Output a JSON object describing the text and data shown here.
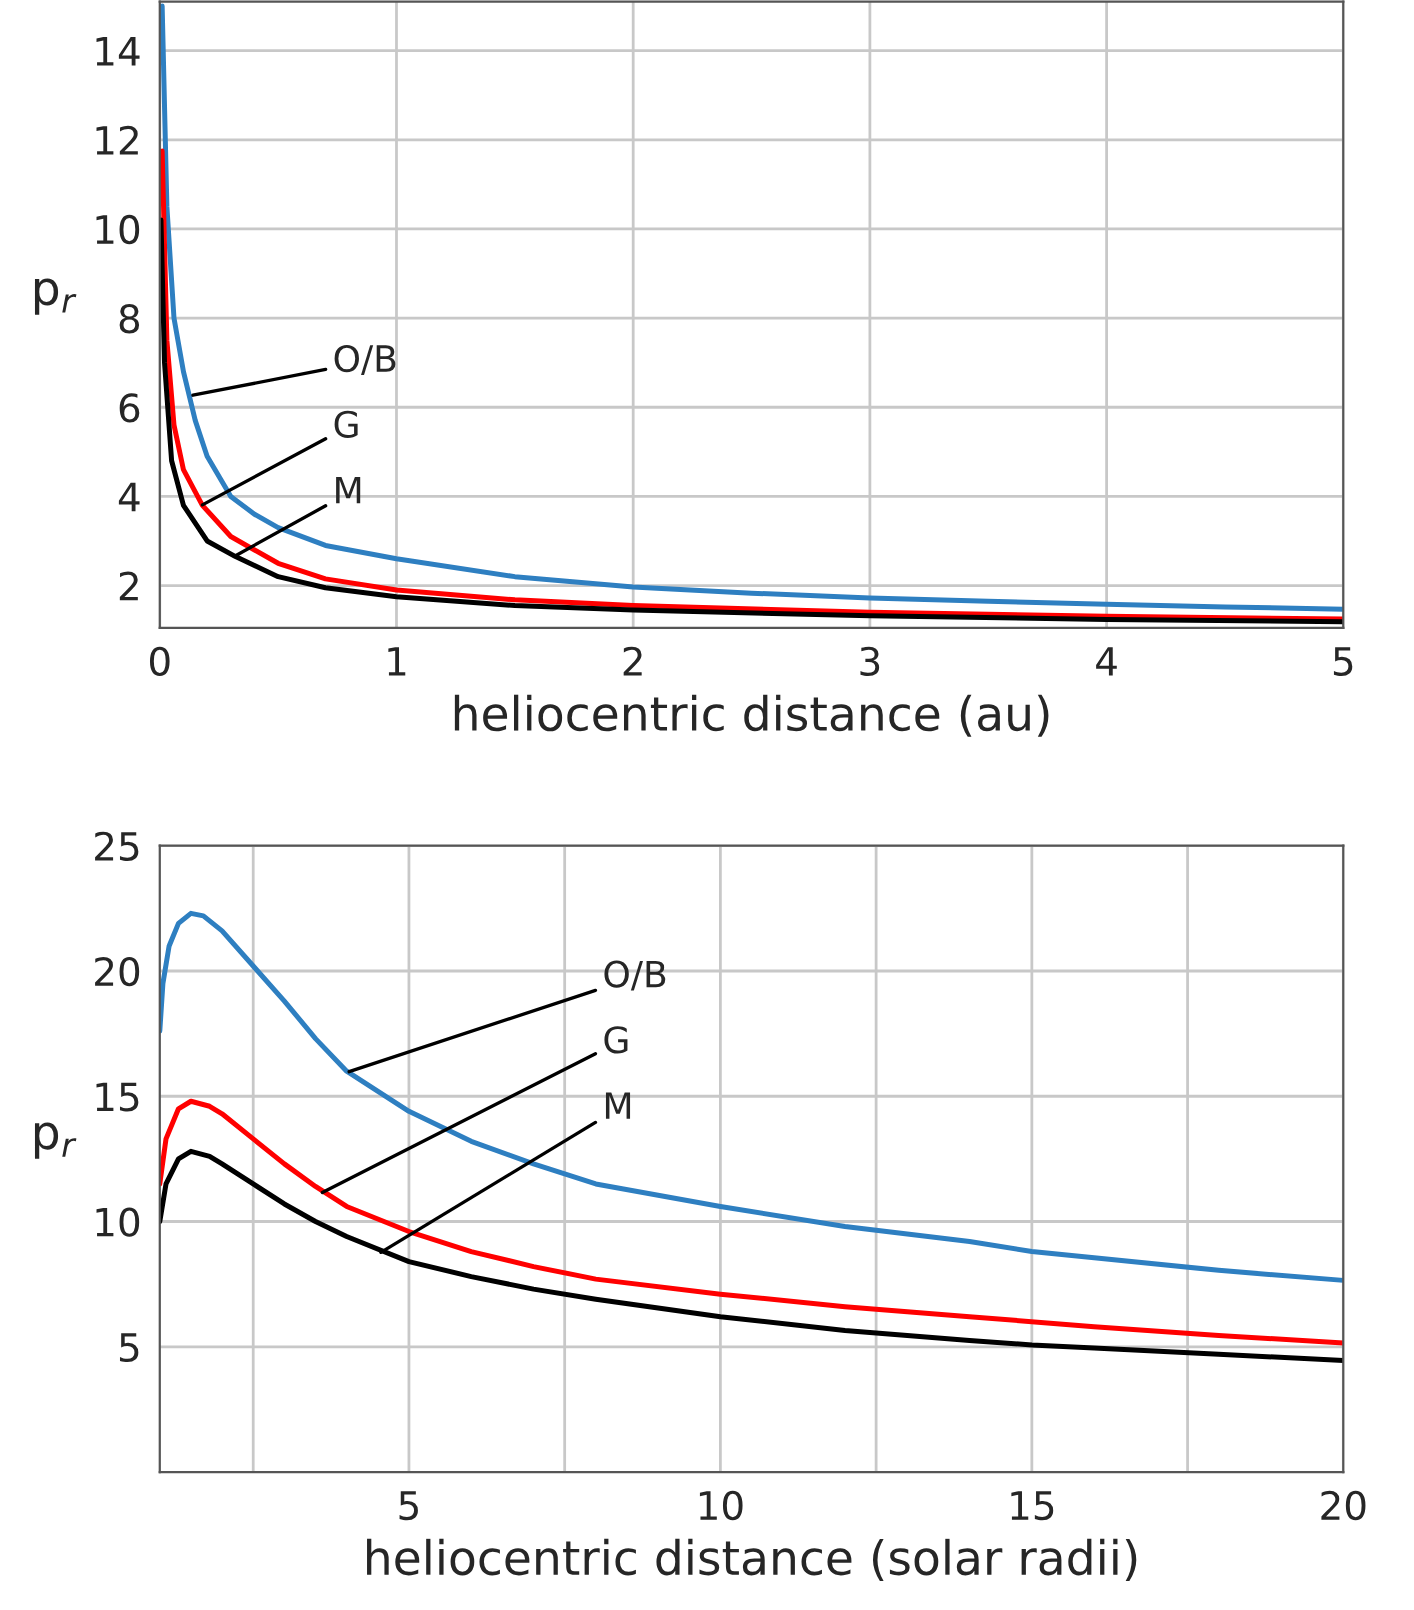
{
  "chart_data": [
    {
      "type": "line",
      "xlabel": "heliocentric distance (au)",
      "ylabel": "p$_{r}$",
      "xlim": [
        0,
        5
      ],
      "ylim": [
        1.05,
        15.1
      ],
      "xticks": [
        0,
        1,
        2,
        3,
        4,
        5
      ],
      "yticks": [
        2,
        4,
        6,
        8,
        10,
        12,
        14
      ],
      "grid": true,
      "series": [
        {
          "color": "#2e7fc1",
          "x": [
            0.01,
            0.03,
            0.06,
            0.1,
            0.15,
            0.2,
            0.3,
            0.4,
            0.5,
            0.7,
            1,
            1.5,
            2,
            2.5,
            3,
            3.5,
            4,
            4.5,
            5
          ],
          "values": [
            15.0,
            10.5,
            8.0,
            6.8,
            5.7,
            4.9,
            4.0,
            3.6,
            3.3,
            2.9,
            2.6,
            2.2,
            1.97,
            1.83,
            1.72,
            1.65,
            1.58,
            1.52,
            1.47
          ]
        },
        {
          "color": "#ff0000",
          "x": [
            0.01,
            0.03,
            0.06,
            0.1,
            0.18,
            0.3,
            0.5,
            0.7,
            1,
            1.5,
            2,
            3,
            4,
            5
          ],
          "values": [
            11.75,
            7.5,
            5.6,
            4.6,
            3.8,
            3.1,
            2.5,
            2.15,
            1.9,
            1.68,
            1.55,
            1.4,
            1.31,
            1.25
          ]
        },
        {
          "color": "#000000",
          "x": [
            0.005,
            0.02,
            0.05,
            0.1,
            0.2,
            0.32,
            0.5,
            0.7,
            1,
            1.5,
            2,
            3,
            4,
            5
          ],
          "values": [
            10.2,
            7.0,
            4.8,
            3.8,
            3.0,
            2.65,
            2.2,
            1.95,
            1.75,
            1.55,
            1.45,
            1.32,
            1.24,
            1.19
          ]
        }
      ],
      "annotations": [
        {
          "text": "O/B",
          "x": 0.14,
          "y": 6.27
        },
        {
          "text": "G",
          "x": 0.18,
          "y": 3.81
        },
        {
          "text": "M",
          "x": 0.32,
          "y": 2.67
        }
      ]
    },
    {
      "type": "line",
      "xlabel": "heliocentric distance (solar radii)",
      "ylabel": "p$_{r}$",
      "xlim": [
        1,
        20
      ],
      "ylim": [
        0,
        25
      ],
      "xticks": [
        {
          "value": 2.5,
          "label": null
        },
        5,
        {
          "value": 7.5,
          "label": null
        },
        10,
        {
          "value": 12.5,
          "label": null
        },
        15,
        {
          "value": 17.5,
          "label": null
        },
        20
      ],
      "yticks": [
        5,
        10,
        15,
        20,
        25
      ],
      "grid": true,
      "series": [
        {
          "color": "#2e7fc1",
          "x": [
            1.0,
            1.05,
            1.15,
            1.3,
            1.5,
            1.7,
            2,
            2.5,
            3,
            3.5,
            4,
            5,
            6,
            7,
            8,
            10,
            12,
            14,
            15,
            16,
            18,
            20
          ],
          "values": [
            17.6,
            19.5,
            21.0,
            21.9,
            22.3,
            22.2,
            21.6,
            20.2,
            18.8,
            17.3,
            16.0,
            14.4,
            13.2,
            12.3,
            11.5,
            10.6,
            9.8,
            9.2,
            8.8,
            8.55,
            8.05,
            7.65
          ]
        },
        {
          "color": "#ff0000",
          "x": [
            1.0,
            1.1,
            1.3,
            1.5,
            1.8,
            2,
            2.5,
            3,
            3.5,
            4,
            5,
            6,
            7,
            8,
            10,
            12,
            14,
            16,
            18,
            20
          ],
          "values": [
            11.5,
            13.3,
            14.5,
            14.8,
            14.6,
            14.3,
            13.3,
            12.3,
            11.4,
            10.6,
            9.6,
            8.8,
            8.2,
            7.7,
            7.1,
            6.6,
            6.2,
            5.8,
            5.45,
            5.15
          ]
        },
        {
          "color": "#000000",
          "x": [
            1.0,
            1.1,
            1.3,
            1.5,
            1.8,
            2,
            2.5,
            3,
            3.5,
            4,
            5,
            6,
            7,
            8,
            10,
            12,
            14,
            15,
            16,
            18,
            20
          ],
          "values": [
            10.0,
            11.5,
            12.5,
            12.8,
            12.6,
            12.3,
            11.5,
            10.7,
            10.0,
            9.4,
            8.4,
            7.8,
            7.3,
            6.9,
            6.2,
            5.65,
            5.25,
            5.07,
            4.95,
            4.7,
            4.45
          ]
        }
      ],
      "annotations": [
        {
          "text": "O/B",
          "x": 4.04,
          "y": 15.98
        },
        {
          "text": "G",
          "x": 3.61,
          "y": 11.16
        },
        {
          "text": "M",
          "x": 4.55,
          "y": 8.77
        }
      ]
    }
  ]
}
